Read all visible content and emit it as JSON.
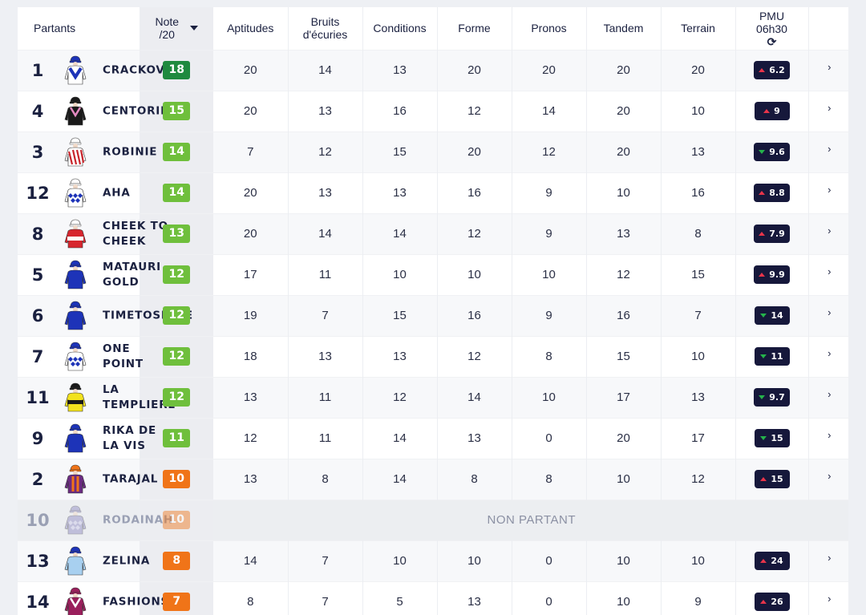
{
  "header": {
    "partants": "Partants",
    "note_line1": "Note",
    "note_line2": "/20",
    "columns": [
      {
        "key": "aptitudes",
        "line1": "Aptitudes",
        "line2": ""
      },
      {
        "key": "bruits",
        "line1": "Bruits",
        "line2": "d'écuries"
      },
      {
        "key": "conditions",
        "line1": "Conditions",
        "line2": ""
      },
      {
        "key": "forme",
        "line1": "Forme",
        "line2": ""
      },
      {
        "key": "pronos",
        "line1": "Pronos",
        "line2": ""
      },
      {
        "key": "tandem",
        "line1": "Tandem",
        "line2": ""
      },
      {
        "key": "terrain",
        "line1": "Terrain",
        "line2": ""
      }
    ],
    "pmu_line1": "PMU",
    "pmu_line2": "06h30"
  },
  "colors": {
    "note_dark_green": "#1f8a3f",
    "note_green": "#6fbf3c",
    "note_orange": "#f07418",
    "pmu_badge": "#16183b",
    "trend_up": "#e8344a",
    "trend_down": "#25b34b"
  },
  "icons": {
    "sort": "caret-down-icon",
    "refresh": "refresh-icon",
    "row_arrow": "chevron-right-icon"
  },
  "non_partant_label": "NON PARTANT",
  "rows": [
    {
      "num": "1",
      "name": "CRACKOVIA",
      "note": "18",
      "note_color": "#1f8a3f",
      "scores": [
        "20",
        "14",
        "13",
        "20",
        "20",
        "20",
        "20"
      ],
      "pmu": "6.2",
      "trend": "up",
      "silk": {
        "body": "#ffffff",
        "pattern": "chevron",
        "accent": "#1d33b8",
        "cap": "#1d33b8"
      }
    },
    {
      "num": "4",
      "name": "CENTORINO",
      "note": "15",
      "note_color": "#6fbf3c",
      "scores": [
        "20",
        "13",
        "16",
        "12",
        "14",
        "20",
        "10"
      ],
      "pmu": "9",
      "trend": "up",
      "silk": {
        "body": "#1a1a1a",
        "pattern": "vee",
        "accent": "#e58ac2",
        "cap": "#1a1a1a"
      }
    },
    {
      "num": "3",
      "name": "ROBINIE",
      "note": "14",
      "note_color": "#6fbf3c",
      "scores": [
        "7",
        "12",
        "15",
        "20",
        "12",
        "20",
        "13"
      ],
      "pmu": "9.6",
      "trend": "down",
      "silk": {
        "body": "#ffffff",
        "pattern": "stripes",
        "accent": "#c8252c",
        "cap": "#ffffff"
      }
    },
    {
      "num": "12",
      "name": "AHA",
      "note": "14",
      "note_color": "#6fbf3c",
      "scores": [
        "20",
        "13",
        "13",
        "16",
        "9",
        "10",
        "16"
      ],
      "pmu": "8.8",
      "trend": "up",
      "silk": {
        "body": "#ffffff",
        "pattern": "check",
        "accent": "#1d33b8",
        "cap": "#ffffff"
      }
    },
    {
      "num": "8",
      "name": "CHEEK TO CHEEK",
      "note": "13",
      "note_color": "#6fbf3c",
      "scores": [
        "20",
        "14",
        "14",
        "12",
        "9",
        "13",
        "8"
      ],
      "pmu": "7.9",
      "trend": "up",
      "silk": {
        "body": "#d7262e",
        "pattern": "band",
        "accent": "#ffffff",
        "cap": "#ffffff"
      }
    },
    {
      "num": "5",
      "name": "MATAURI GOLD",
      "note": "12",
      "note_color": "#6fbf3c",
      "scores": [
        "17",
        "11",
        "10",
        "10",
        "10",
        "12",
        "15"
      ],
      "pmu": "9.9",
      "trend": "up",
      "silk": {
        "body": "#1d33b8",
        "pattern": "plain",
        "accent": "#1d33b8",
        "cap": "#1d33b8"
      }
    },
    {
      "num": "6",
      "name": "TIMETOSHINE",
      "note": "12",
      "note_color": "#6fbf3c",
      "scores": [
        "19",
        "7",
        "15",
        "16",
        "9",
        "16",
        "7"
      ],
      "pmu": "14",
      "trend": "down",
      "silk": {
        "body": "#1d33b8",
        "pattern": "plain",
        "accent": "#1d33b8",
        "cap": "#1d33b8"
      }
    },
    {
      "num": "7",
      "name": "ONE POINT",
      "note": "12",
      "note_color": "#6fbf3c",
      "scores": [
        "18",
        "13",
        "13",
        "12",
        "8",
        "15",
        "10"
      ],
      "pmu": "11",
      "trend": "down",
      "silk": {
        "body": "#ffffff",
        "pattern": "check",
        "accent": "#1d33b8",
        "cap": "#1d33b8"
      }
    },
    {
      "num": "11",
      "name": "LA TEMPLIERE",
      "note": "12",
      "note_color": "#6fbf3c",
      "scores": [
        "13",
        "11",
        "12",
        "14",
        "10",
        "17",
        "13"
      ],
      "pmu": "9.7",
      "trend": "down",
      "silk": {
        "body": "#f2e21e",
        "pattern": "band",
        "accent": "#1a1a1a",
        "cap": "#1a1a1a"
      }
    },
    {
      "num": "9",
      "name": "RIKA DE LA VIS",
      "note": "11",
      "note_color": "#6fbf3c",
      "scores": [
        "12",
        "11",
        "14",
        "13",
        "0",
        "20",
        "17"
      ],
      "pmu": "15",
      "trend": "down",
      "silk": {
        "body": "#1d33b8",
        "pattern": "plain",
        "accent": "#1d33b8",
        "cap": "#1d33b8"
      }
    },
    {
      "num": "2",
      "name": "TARAJAL",
      "note": "10",
      "note_color": "#f07418",
      "scores": [
        "13",
        "8",
        "14",
        "8",
        "8",
        "10",
        "12"
      ],
      "pmu": "15",
      "trend": "up",
      "silk": {
        "body": "#6b2b82",
        "pattern": "braces",
        "accent": "#f07418",
        "cap": "#f07418"
      }
    },
    {
      "num": "10",
      "name": "RODAINAH",
      "note": "10",
      "note_color": "#f07418",
      "non_partant": true,
      "silk": {
        "body": "#8a86c0",
        "pattern": "check",
        "accent": "#c8c6e6",
        "cap": "#8a86c0"
      }
    },
    {
      "num": "13",
      "name": "ZELINA",
      "note": "8",
      "note_color": "#f07418",
      "scores": [
        "14",
        "7",
        "10",
        "10",
        "0",
        "10",
        "10"
      ],
      "pmu": "24",
      "trend": "up",
      "silk": {
        "body": "#a8d0f0",
        "pattern": "plain",
        "accent": "#a8d0f0",
        "cap": "#1d33b8"
      }
    },
    {
      "num": "14",
      "name": "FASHIONS",
      "note": "7",
      "note_color": "#f07418",
      "scores": [
        "8",
        "7",
        "5",
        "13",
        "0",
        "10",
        "9"
      ],
      "pmu": "26",
      "trend": "up",
      "silk": {
        "body": "#9a1f5c",
        "pattern": "vee",
        "accent": "#ffffff",
        "cap": "#9a1f5c"
      }
    }
  ]
}
